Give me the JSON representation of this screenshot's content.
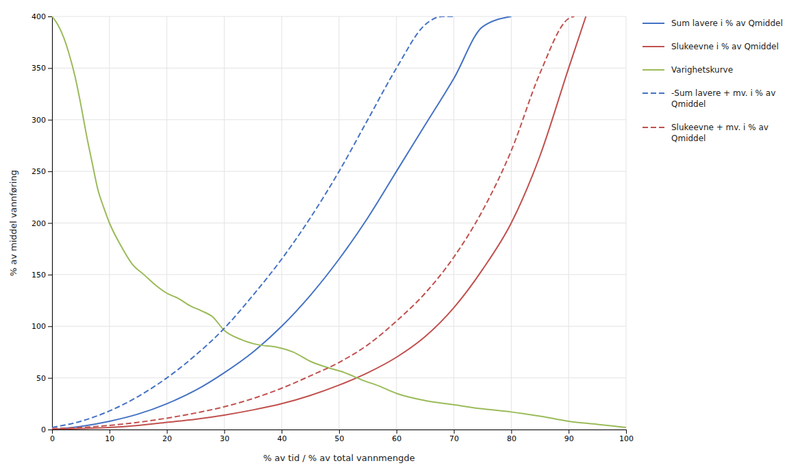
{
  "chart_data": {
    "type": "line",
    "xlabel": "% av tid / % av total vannmengde",
    "ylabel": "% av middel vannføring",
    "xlim": [
      0,
      100
    ],
    "ylim": [
      0,
      400
    ],
    "xticks": [
      0,
      10,
      20,
      30,
      40,
      50,
      60,
      70,
      80,
      90,
      100
    ],
    "yticks": [
      0,
      50,
      100,
      150,
      200,
      250,
      300,
      350,
      400
    ],
    "grid": true,
    "legend": "right",
    "series": [
      {
        "name": "Sum lavere i % av Qmiddel",
        "color": "#4472c4",
        "line_style": "solid",
        "x": [
          0,
          5,
          10,
          15,
          20,
          25,
          30,
          35,
          40,
          45,
          50,
          55,
          60,
          65,
          70,
          75,
          80
        ],
        "values": [
          0,
          3,
          8,
          15,
          25,
          38,
          55,
          75,
          100,
          130,
          165,
          205,
          250,
          295,
          340,
          390,
          400
        ]
      },
      {
        "name": "Slukeevne i % av Qmiddel",
        "color": "#c0504d",
        "line_style": "solid",
        "x": [
          0,
          5,
          10,
          15,
          20,
          25,
          30,
          35,
          40,
          45,
          50,
          55,
          60,
          65,
          70,
          75,
          80,
          85,
          90,
          93
        ],
        "values": [
          0,
          1,
          2,
          4,
          7,
          10,
          14,
          19,
          25,
          33,
          43,
          55,
          70,
          90,
          118,
          155,
          200,
          265,
          350,
          400
        ]
      },
      {
        "name": "Varighetskurve",
        "color": "#9bbb59",
        "line_style": "solid",
        "x": [
          0,
          1,
          2,
          3,
          4,
          5,
          6,
          7,
          8,
          9,
          10,
          12,
          14,
          16,
          18,
          20,
          22,
          24,
          26,
          28,
          30,
          33,
          36,
          39,
          42,
          45,
          48,
          51,
          54,
          57,
          60,
          65,
          70,
          75,
          80,
          85,
          90,
          95,
          100
        ],
        "values": [
          400,
          392,
          380,
          363,
          342,
          315,
          285,
          258,
          232,
          215,
          200,
          178,
          160,
          150,
          140,
          132,
          127,
          120,
          115,
          109,
          96,
          87,
          82,
          80,
          75,
          66,
          60,
          55,
          48,
          42,
          35,
          28,
          24,
          20,
          17,
          13,
          8,
          5,
          2
        ]
      },
      {
        "name": "-Sum lavere + mv. i % av\nQmiddel",
        "color": "#4472c4",
        "line_style": "dashed",
        "x": [
          0,
          5,
          10,
          15,
          20,
          25,
          30,
          35,
          40,
          45,
          50,
          55,
          60,
          65,
          68,
          70
        ],
        "values": [
          2,
          8,
          18,
          32,
          50,
          72,
          98,
          130,
          165,
          205,
          250,
          300,
          350,
          392,
          400,
          400
        ]
      },
      {
        "name": "Slukeevne + mv. i % av\nQmiddel",
        "color": "#c0504d",
        "line_style": "dashed",
        "x": [
          0,
          5,
          10,
          15,
          20,
          25,
          30,
          35,
          40,
          45,
          50,
          55,
          60,
          65,
          70,
          75,
          80,
          85,
          90,
          91
        ],
        "values": [
          1,
          2,
          4,
          7,
          11,
          16,
          22,
          30,
          40,
          52,
          65,
          82,
          105,
          132,
          167,
          212,
          270,
          345,
          398,
          400
        ]
      }
    ]
  }
}
